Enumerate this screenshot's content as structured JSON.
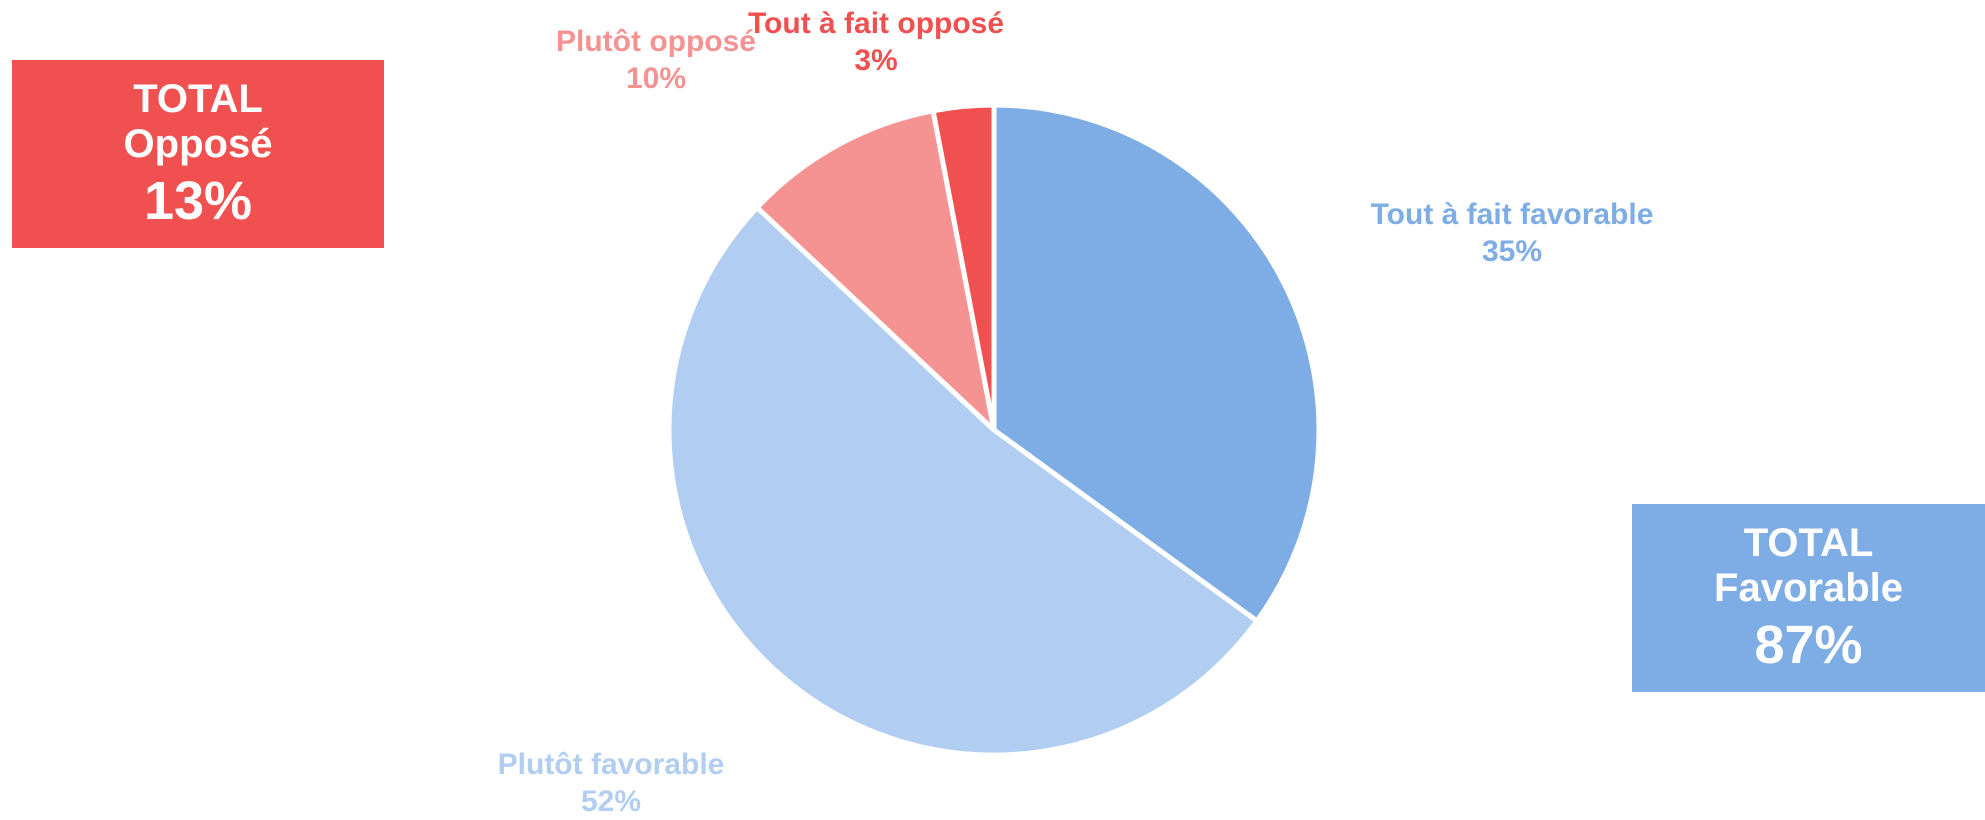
{
  "colors": {
    "strong_favorable": "#7eade6",
    "favorable": "#b1cdf1",
    "opposed": "#f59393",
    "strong_opposed": "#f15050"
  },
  "totals": {
    "opposed": {
      "line1": "TOTAL",
      "line2": "Opposé",
      "value": "13%",
      "color": "#f15050"
    },
    "favorable": {
      "line1": "TOTAL",
      "line2": "Favorable",
      "value": "87%",
      "color": "#7eade6"
    }
  },
  "chart_data": {
    "type": "pie",
    "start_angle_deg": 0,
    "direction": "clockwise",
    "slices": [
      {
        "name": "Tout à fait favorable",
        "value": 35,
        "label": "35%",
        "color": "#7eade6"
      },
      {
        "name": "Plutôt favorable",
        "value": 52,
        "label": "52%",
        "color": "#b1cdf1"
      },
      {
        "name": "Plutôt opposé",
        "value": 10,
        "label": "10%",
        "color": "#f59393"
      },
      {
        "name": "Tout à fait opposé",
        "value": 3,
        "label": "3%",
        "color": "#f15050"
      }
    ]
  }
}
